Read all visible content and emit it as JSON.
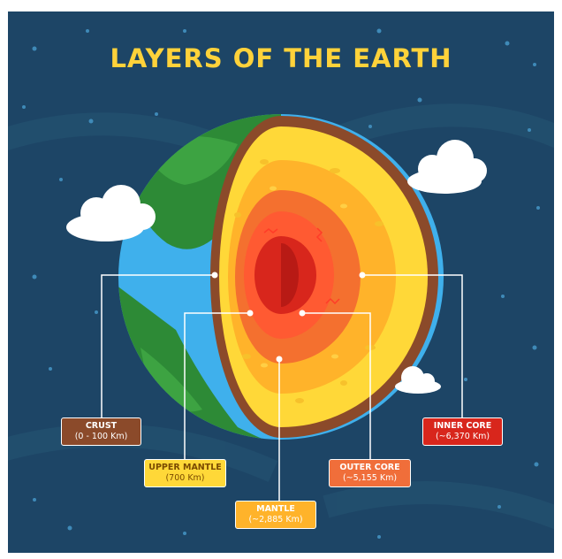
{
  "title": "LAYERS OF THE EARTH",
  "layers": [
    {
      "name": "CRUST",
      "value": "(0 - 100 Km)"
    },
    {
      "name": "UPPER MANTLE",
      "value": "(700 Km)"
    },
    {
      "name": "MANTLE",
      "value": "(~2,885 Km)"
    },
    {
      "name": "OUTER CORE",
      "value": "(~5,155 Km)"
    },
    {
      "name": "INNER CORE",
      "value": "(~6,370 Km)"
    }
  ],
  "colors": {
    "background": "#1d4566",
    "title": "#ffd23a",
    "ocean": "#3fb0ec",
    "land": "#2d8a36",
    "crust": "#8b4a2a",
    "upper_mantle": "#ffd838",
    "mantle": "#ffb32a",
    "outer_core": "#f06e3a",
    "inner_core": "#d8261c"
  }
}
